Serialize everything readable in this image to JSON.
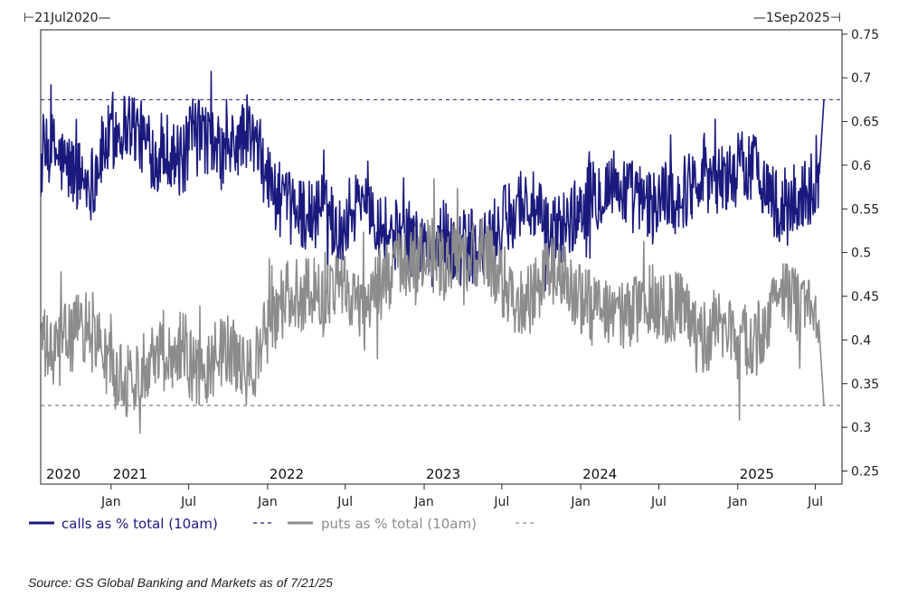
{
  "chart_data": {
    "type": "line",
    "range": {
      "start_label": "21Jul2020",
      "end_label": "1Sep2025"
    },
    "y_axis": {
      "ylim": [
        0.235,
        0.755
      ],
      "ticks": [
        "0.25",
        "0.3",
        "0.35",
        "0.4",
        "0.45",
        "0.5",
        "0.55",
        "0.6",
        "0.65",
        "0.7",
        "0.75"
      ],
      "position": "right"
    },
    "x_axis": {
      "xlim": [
        "2020-07-21",
        "2025-09-01"
      ],
      "ticks": [
        {
          "date": "2021-01-01",
          "label": "Jan"
        },
        {
          "date": "2021-07-01",
          "label": "Jul"
        },
        {
          "date": "2022-01-01",
          "label": "Jan"
        },
        {
          "date": "2022-07-01",
          "label": "Jul"
        },
        {
          "date": "2023-01-01",
          "label": "Jan"
        },
        {
          "date": "2023-07-01",
          "label": "Jul"
        },
        {
          "date": "2024-01-01",
          "label": "Jan"
        },
        {
          "date": "2024-07-01",
          "label": "Jul"
        },
        {
          "date": "2025-01-01",
          "label": "Jan"
        },
        {
          "date": "2025-07-01",
          "label": "Jul"
        }
      ],
      "year_labels": [
        {
          "date": "2020-07-21",
          "label": "2020"
        },
        {
          "date": "2021-01-01",
          "label": "2021"
        },
        {
          "date": "2022-01-01",
          "label": "2022"
        },
        {
          "date": "2023-01-01",
          "label": "2023"
        },
        {
          "date": "2024-01-01",
          "label": "2024"
        },
        {
          "date": "2025-01-01",
          "label": "2025"
        }
      ]
    },
    "reference_lines": [
      {
        "series": "calls",
        "value": 0.675
      },
      {
        "series": "puts",
        "value": 0.325
      }
    ],
    "series": [
      {
        "name": "calls as % total (10am)",
        "color": "#1a1a7e",
        "x": [
          "2020-07-21",
          "2020-08-15",
          "2020-09-15",
          "2020-10-15",
          "2020-11-15",
          "2020-12-15",
          "2021-01-15",
          "2021-02-15",
          "2021-03-15",
          "2021-04-15",
          "2021-05-15",
          "2021-06-15",
          "2021-07-15",
          "2021-08-15",
          "2021-09-15",
          "2021-10-15",
          "2021-11-15",
          "2021-12-15",
          "2022-01-15",
          "2022-02-15",
          "2022-03-15",
          "2022-04-15",
          "2022-05-15",
          "2022-06-15",
          "2022-07-15",
          "2022-08-15",
          "2022-09-15",
          "2022-10-15",
          "2022-11-15",
          "2022-12-15",
          "2023-01-15",
          "2023-02-15",
          "2023-03-15",
          "2023-04-15",
          "2023-05-15",
          "2023-06-15",
          "2023-07-15",
          "2023-08-15",
          "2023-09-15",
          "2023-10-15",
          "2023-11-15",
          "2023-12-15",
          "2024-01-15",
          "2024-02-15",
          "2024-03-15",
          "2024-04-15",
          "2024-05-15",
          "2024-06-15",
          "2024-07-15",
          "2024-08-15",
          "2024-09-15",
          "2024-10-15",
          "2024-11-15",
          "2024-12-15",
          "2025-01-15",
          "2025-02-15",
          "2025-03-15",
          "2025-04-15",
          "2025-05-15",
          "2025-06-15",
          "2025-07-10",
          "2025-07-21"
        ],
        "values": [
          0.6,
          0.62,
          0.6,
          0.59,
          0.58,
          0.62,
          0.64,
          0.65,
          0.63,
          0.61,
          0.62,
          0.6,
          0.64,
          0.63,
          0.61,
          0.62,
          0.64,
          0.61,
          0.57,
          0.55,
          0.55,
          0.54,
          0.56,
          0.52,
          0.55,
          0.57,
          0.54,
          0.52,
          0.52,
          0.51,
          0.5,
          0.52,
          0.5,
          0.51,
          0.5,
          0.52,
          0.54,
          0.56,
          0.55,
          0.52,
          0.53,
          0.54,
          0.56,
          0.57,
          0.58,
          0.57,
          0.56,
          0.55,
          0.57,
          0.56,
          0.58,
          0.6,
          0.58,
          0.59,
          0.6,
          0.6,
          0.57,
          0.54,
          0.56,
          0.57,
          0.59,
          0.675
        ]
      },
      {
        "name": "puts as % total (10am)",
        "color": "#8c8c8c",
        "x": [
          "2020-07-21",
          "2020-08-15",
          "2020-09-15",
          "2020-10-15",
          "2020-11-15",
          "2020-12-15",
          "2021-01-15",
          "2021-02-15",
          "2021-03-15",
          "2021-04-15",
          "2021-05-15",
          "2021-06-15",
          "2021-07-15",
          "2021-08-15",
          "2021-09-15",
          "2021-10-15",
          "2021-11-15",
          "2021-12-15",
          "2022-01-15",
          "2022-02-15",
          "2022-03-15",
          "2022-04-15",
          "2022-05-15",
          "2022-06-15",
          "2022-07-15",
          "2022-08-15",
          "2022-09-15",
          "2022-10-15",
          "2022-11-15",
          "2022-12-15",
          "2023-01-15",
          "2023-02-15",
          "2023-03-15",
          "2023-04-15",
          "2023-05-15",
          "2023-06-15",
          "2023-07-15",
          "2023-08-15",
          "2023-09-15",
          "2023-10-15",
          "2023-11-15",
          "2023-12-15",
          "2024-01-15",
          "2024-02-15",
          "2024-03-15",
          "2024-04-15",
          "2024-05-15",
          "2024-06-15",
          "2024-07-15",
          "2024-08-15",
          "2024-09-15",
          "2024-10-15",
          "2024-11-15",
          "2024-12-15",
          "2025-01-15",
          "2025-02-15",
          "2025-03-15",
          "2025-04-15",
          "2025-05-15",
          "2025-06-15",
          "2025-07-10",
          "2025-07-21"
        ],
        "values": [
          0.4,
          0.38,
          0.4,
          0.41,
          0.42,
          0.38,
          0.36,
          0.35,
          0.37,
          0.39,
          0.38,
          0.4,
          0.36,
          0.37,
          0.39,
          0.38,
          0.36,
          0.39,
          0.43,
          0.45,
          0.45,
          0.46,
          0.44,
          0.48,
          0.45,
          0.43,
          0.46,
          0.48,
          0.48,
          0.49,
          0.5,
          0.48,
          0.5,
          0.49,
          0.5,
          0.48,
          0.46,
          0.44,
          0.45,
          0.48,
          0.47,
          0.46,
          0.44,
          0.43,
          0.42,
          0.43,
          0.44,
          0.45,
          0.43,
          0.44,
          0.42,
          0.4,
          0.42,
          0.41,
          0.4,
          0.4,
          0.43,
          0.46,
          0.44,
          0.43,
          0.41,
          0.325
        ]
      }
    ]
  },
  "source": "Source: GS Global Banking and Markets as of 7/21/25"
}
